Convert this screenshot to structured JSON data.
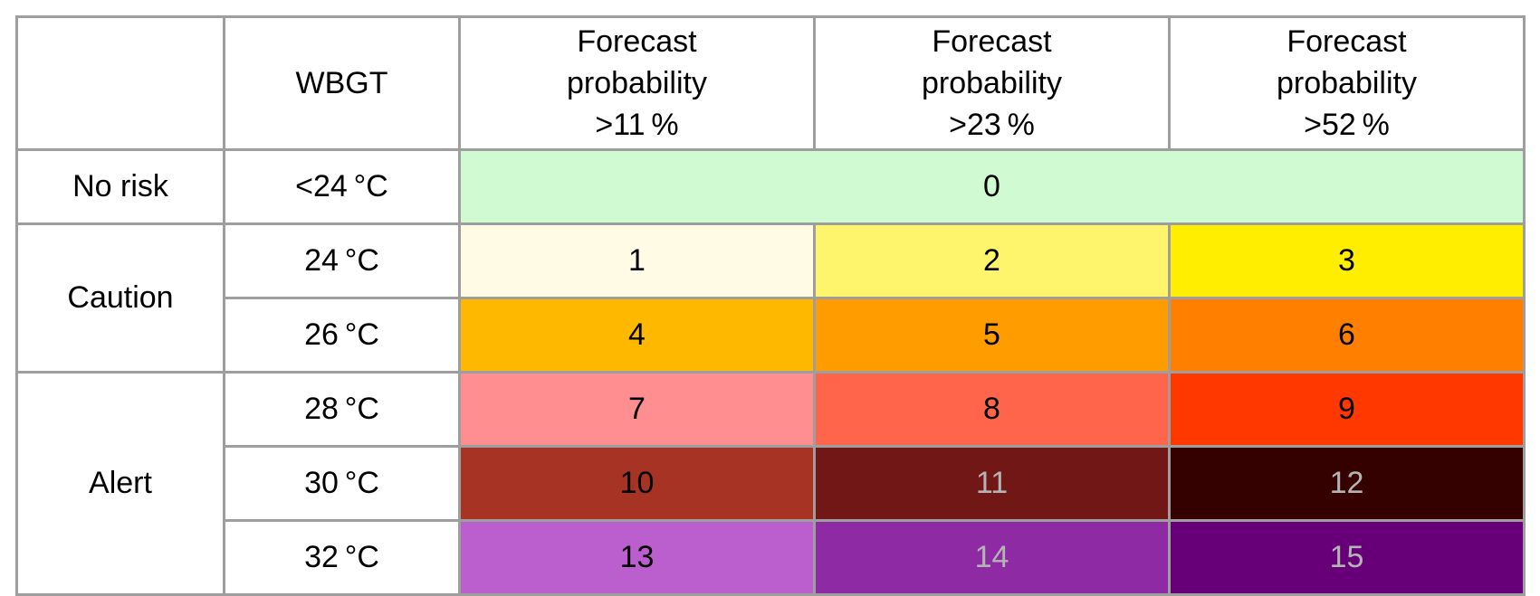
{
  "header": {
    "corner": "",
    "wbgt": "WBGT",
    "prob_columns": [
      [
        "Forecast",
        "probability",
        ">11 %"
      ],
      [
        "Forecast",
        "probability",
        ">23 %"
      ],
      [
        "Forecast",
        "probability",
        ">52 %"
      ]
    ]
  },
  "categories": {
    "no_risk": "No risk",
    "caution": "Caution",
    "alert": "Alert"
  },
  "no_risk_row": {
    "wbgt": "<24 °C",
    "value": "0",
    "color": "#d0fad2"
  },
  "rows": [
    {
      "wbgt": "24 °C",
      "cells": [
        {
          "value": "1",
          "color": "#fffbe5",
          "text_color": "#000000"
        },
        {
          "value": "2",
          "color": "#fff56d",
          "text_color": "#000000"
        },
        {
          "value": "3",
          "color": "#ffee00",
          "text_color": "#000000"
        }
      ]
    },
    {
      "wbgt": "26 °C",
      "cells": [
        {
          "value": "4",
          "color": "#ffb800",
          "text_color": "#000000"
        },
        {
          "value": "5",
          "color": "#ff9c00",
          "text_color": "#000000"
        },
        {
          "value": "6",
          "color": "#ff7f00",
          "text_color": "#000000"
        }
      ]
    },
    {
      "wbgt": "28 °C",
      "cells": [
        {
          "value": "7",
          "color": "#ff8e90",
          "text_color": "#000000"
        },
        {
          "value": "8",
          "color": "#ff654b",
          "text_color": "#000000"
        },
        {
          "value": "9",
          "color": "#ff3800",
          "text_color": "#000000"
        }
      ]
    },
    {
      "wbgt": "30 °C",
      "cells": [
        {
          "value": "10",
          "color": "#a73324",
          "text_color": "#000000"
        },
        {
          "value": "11",
          "color": "#711816",
          "text_color": "#b4b4b4"
        },
        {
          "value": "12",
          "color": "#350000",
          "text_color": "#b4b4b4"
        }
      ]
    },
    {
      "wbgt": "32 °C",
      "cells": [
        {
          "value": "13",
          "color": "#bb5fcf",
          "text_color": "#000000"
        },
        {
          "value": "14",
          "color": "#8d2aa4",
          "text_color": "#b4b4b4"
        },
        {
          "value": "15",
          "color": "#670078",
          "text_color": "#b4b4b4"
        }
      ]
    }
  ]
}
